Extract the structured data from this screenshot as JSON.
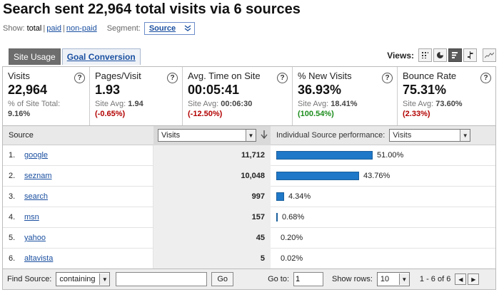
{
  "title": "Search sent 22,964 total visits via 6 sources",
  "show": {
    "label": "Show:",
    "total": "total",
    "sep1": "|",
    "paid": "paid",
    "sep2": "|",
    "nonpaid": "non-paid"
  },
  "segment": {
    "label": "Segment:",
    "value": "Source"
  },
  "tabs": [
    {
      "label": "Site Usage",
      "active": true
    },
    {
      "label": "Goal Conversion",
      "active": false
    }
  ],
  "views": {
    "label": "Views:",
    "buttons": [
      "table-view-icon",
      "pie-chart-icon",
      "bar-chart-icon",
      "comparison-icon",
      "pivot-icon"
    ]
  },
  "metrics": [
    {
      "name": "Visits",
      "value": "22,964",
      "line1": "% of Site Total:",
      "line2": "9.16%"
    },
    {
      "name": "Pages/Visit",
      "value": "1.93",
      "avg_label": "Site Avg:",
      "avg": "1.94",
      "diff": "(-0.65%)"
    },
    {
      "name": "Avg. Time on Site",
      "value": "00:05:41",
      "avg_label": "Site Avg:",
      "avg": "00:06:30",
      "diff": "(-12.50%)"
    },
    {
      "name": "% New Visits",
      "value": "36.93%",
      "avg_label": "Site Avg:",
      "avg": "18.41%",
      "diff": "(100.54%)"
    },
    {
      "name": "Bounce Rate",
      "value": "75.31%",
      "avg_label": "Site Avg:",
      "avg": "73.60%",
      "diff": "(2.33%)"
    }
  ],
  "help_glyph": "?",
  "table": {
    "col_source": "Source",
    "col_visits": "Visits",
    "perf_label": "Individual Source performance:",
    "perf_select": "Visits",
    "rows": [
      {
        "num": "1.",
        "source": "google",
        "visits": "11,712",
        "pct": "51.00%",
        "frac": 0.51
      },
      {
        "num": "2.",
        "source": "seznam",
        "visits": "10,048",
        "pct": "43.76%",
        "frac": 0.4376
      },
      {
        "num": "3.",
        "source": "search",
        "visits": "997",
        "pct": "4.34%",
        "frac": 0.0434
      },
      {
        "num": "4.",
        "source": "msn",
        "visits": "157",
        "pct": "0.68%",
        "frac": 0.0068
      },
      {
        "num": "5.",
        "source": "yahoo",
        "visits": "45",
        "pct": "0.20%",
        "frac": 0.002
      },
      {
        "num": "6.",
        "source": "altavista",
        "visits": "5",
        "pct": "0.02%",
        "frac": 0.0002
      }
    ]
  },
  "footer": {
    "find_label": "Find Source:",
    "find_mode": "containing",
    "find_value": "",
    "go_label": "Go",
    "goto_label": "Go to:",
    "goto_value": "1",
    "rows_label": "Show rows:",
    "rows_value": "10",
    "range": "1 - 6 of 6"
  }
}
